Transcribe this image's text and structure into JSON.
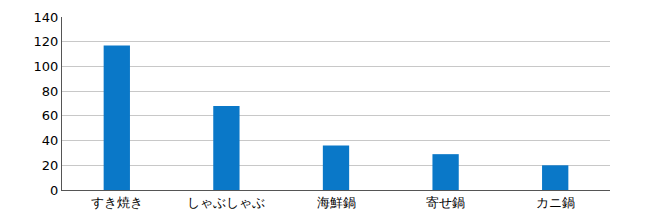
{
  "chart_data": {
    "type": "bar",
    "categories": [
      "すき焼き",
      "しゃぶしゃぶ",
      "海鮮鍋",
      "寄せ鍋",
      "カニ鍋"
    ],
    "values": [
      117,
      68,
      36,
      29,
      20
    ],
    "color": "#0a78c8",
    "ylim": [
      0,
      140
    ],
    "yticks": [
      0,
      20,
      40,
      60,
      80,
      100,
      120,
      140
    ],
    "grid": true
  }
}
